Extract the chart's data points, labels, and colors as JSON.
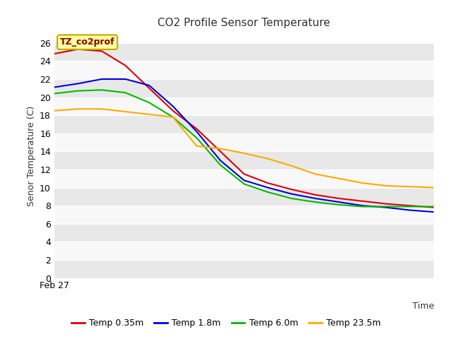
{
  "title": "CO2 Profile Sensor Temperature",
  "ylabel": "Senor Temperature (C)",
  "xlabel": "Time",
  "x_tick_label": "Feb 27",
  "ylim": [
    0,
    27
  ],
  "yticks": [
    0,
    2,
    4,
    6,
    8,
    10,
    12,
    14,
    16,
    18,
    20,
    22,
    24,
    26
  ],
  "plot_bg_color": "#f0f0f0",
  "band_color_light": "#e8e8e8",
  "band_color_white": "#f8f8f8",
  "annotation_text": "TZ_co2prof",
  "annotation_bg": "#ffffa0",
  "annotation_border": "#bbaa00",
  "legend_entries": [
    "Temp 0.35m",
    "Temp 1.8m",
    "Temp 6.0m",
    "Temp 23.5m"
  ],
  "colors": [
    "#dd0000",
    "#0000dd",
    "#00bb00",
    "#ffaa00"
  ],
  "series": {
    "temp_035": [
      24.8,
      25.3,
      25.1,
      23.5,
      21.0,
      18.5,
      16.5,
      14.0,
      11.5,
      10.5,
      9.8,
      9.2,
      8.8,
      8.5,
      8.2,
      8.0,
      7.8
    ],
    "temp_18": [
      21.1,
      21.5,
      22.0,
      22.0,
      21.3,
      19.0,
      16.2,
      13.0,
      10.8,
      10.0,
      9.3,
      8.8,
      8.4,
      8.0,
      7.8,
      7.5,
      7.3
    ],
    "temp_60": [
      20.4,
      20.7,
      20.8,
      20.5,
      19.4,
      17.8,
      15.5,
      12.5,
      10.4,
      9.5,
      8.8,
      8.4,
      8.1,
      7.9,
      7.9,
      7.9,
      7.9
    ],
    "temp_235": [
      18.5,
      18.7,
      18.7,
      18.4,
      18.1,
      17.8,
      14.6,
      14.3,
      13.8,
      13.2,
      12.4,
      11.5,
      11.0,
      10.5,
      10.2,
      10.1,
      10.0
    ]
  }
}
